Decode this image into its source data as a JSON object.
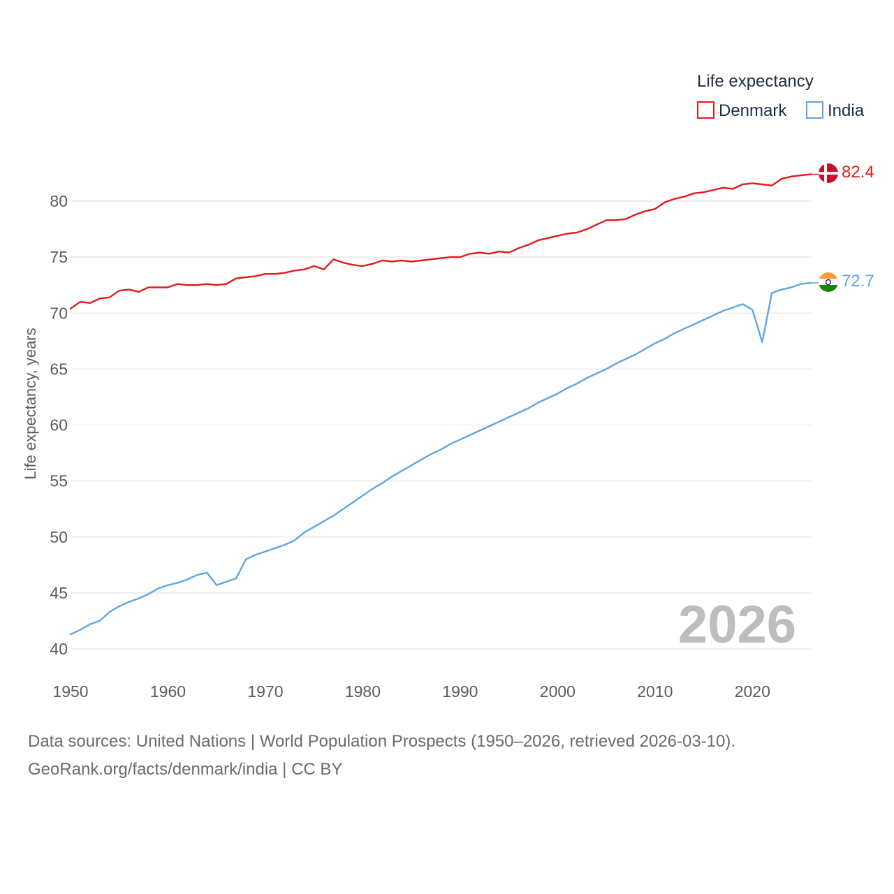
{
  "chart_data": {
    "type": "line",
    "title": "",
    "xlabel": "",
    "ylabel": "Life expectancy, years",
    "xlim": [
      1950,
      2026
    ],
    "ylim": [
      40,
      82.5
    ],
    "xticks": [
      1950,
      1960,
      1970,
      1980,
      1990,
      2000,
      2010,
      2020
    ],
    "yticks": [
      40,
      45,
      50,
      55,
      60,
      65,
      70,
      75,
      80
    ],
    "grid": true,
    "legend": {
      "title": "Life expectancy",
      "position": "top-right",
      "entries": [
        "Denmark",
        "India"
      ]
    },
    "year_stamp": "2026",
    "x": [
      1950,
      1951,
      1952,
      1953,
      1954,
      1955,
      1956,
      1957,
      1958,
      1959,
      1960,
      1961,
      1962,
      1963,
      1964,
      1965,
      1966,
      1967,
      1968,
      1969,
      1970,
      1971,
      1972,
      1973,
      1974,
      1975,
      1976,
      1977,
      1978,
      1979,
      1980,
      1981,
      1982,
      1983,
      1984,
      1985,
      1986,
      1987,
      1988,
      1989,
      1990,
      1991,
      1992,
      1993,
      1994,
      1995,
      1996,
      1997,
      1998,
      1999,
      2000,
      2001,
      2002,
      2003,
      2004,
      2005,
      2006,
      2007,
      2008,
      2009,
      2010,
      2011,
      2012,
      2013,
      2014,
      2015,
      2016,
      2017,
      2018,
      2019,
      2020,
      2021,
      2022,
      2023,
      2024,
      2025,
      2026
    ],
    "series": [
      {
        "name": "Denmark",
        "color": "#e31a1c",
        "end_label": "82.4",
        "values": [
          70.4,
          71.0,
          70.9,
          71.3,
          71.4,
          72.0,
          72.1,
          71.9,
          72.3,
          72.3,
          72.3,
          72.6,
          72.5,
          72.5,
          72.6,
          72.5,
          72.6,
          73.1,
          73.2,
          73.3,
          73.5,
          73.5,
          73.6,
          73.8,
          73.9,
          74.2,
          73.9,
          74.8,
          74.5,
          74.3,
          74.2,
          74.4,
          74.7,
          74.6,
          74.7,
          74.6,
          74.7,
          74.8,
          74.9,
          75.0,
          75.0,
          75.3,
          75.4,
          75.3,
          75.5,
          75.4,
          75.8,
          76.1,
          76.5,
          76.7,
          76.9,
          77.1,
          77.2,
          77.5,
          77.9,
          78.3,
          78.3,
          78.4,
          78.8,
          79.1,
          79.3,
          79.9,
          80.2,
          80.4,
          80.7,
          80.8,
          81.0,
          81.2,
          81.1,
          81.5,
          81.6,
          81.5,
          81.4,
          82.0,
          82.2,
          82.3,
          82.4
        ]
      },
      {
        "name": "India",
        "color": "#5ea6e2",
        "end_label": "72.7",
        "values": [
          41.3,
          41.7,
          42.2,
          42.5,
          43.3,
          43.8,
          44.2,
          44.5,
          44.9,
          45.4,
          45.7,
          45.9,
          46.2,
          46.6,
          46.8,
          45.7,
          46.0,
          46.3,
          48.0,
          48.4,
          48.7,
          49.0,
          49.3,
          49.7,
          50.4,
          50.9,
          51.4,
          51.9,
          52.5,
          53.1,
          53.7,
          54.3,
          54.8,
          55.4,
          55.9,
          56.4,
          56.9,
          57.4,
          57.8,
          58.3,
          58.7,
          59.1,
          59.5,
          59.9,
          60.3,
          60.7,
          61.1,
          61.5,
          62.0,
          62.4,
          62.8,
          63.3,
          63.7,
          64.2,
          64.6,
          65.0,
          65.5,
          65.9,
          66.3,
          66.8,
          67.3,
          67.7,
          68.2,
          68.6,
          69.0,
          69.4,
          69.8,
          70.2,
          70.5,
          70.8,
          70.3,
          67.4,
          71.8,
          72.1,
          72.3,
          72.6,
          72.7
        ]
      }
    ]
  },
  "footer": {
    "line1": "Data sources: United Nations | World Population Prospects (1950–2026, retrieved 2026-03-10).",
    "line2": "GeoRank.org/facts/denmark/india | CC BY"
  }
}
